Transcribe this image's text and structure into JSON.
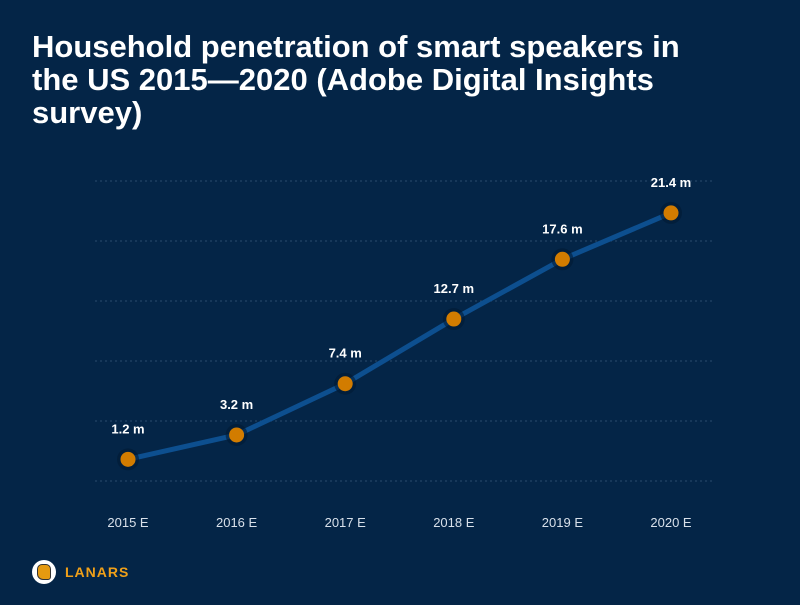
{
  "chart_data": {
    "type": "line",
    "title": "Household penetration of smart speakers in the US 2015—2020 (Adobe Digital Insights survey)",
    "categories": [
      "2015 E",
      "2016 E",
      "2017 E",
      "2018 E",
      "2019 E",
      "2020 E"
    ],
    "values": [
      1.2,
      3.2,
      7.4,
      12.7,
      17.6,
      21.4
    ],
    "data_labels": [
      "1.2 m",
      "3.2 m",
      "7.4 m",
      "12.7 m",
      "17.6 m",
      "21.4 m"
    ],
    "unit": "m",
    "grid": true,
    "colors": {
      "background": "#042547",
      "line": "#0d4f8f",
      "point": "#d27c00",
      "text": "#ffffff"
    }
  },
  "brand": {
    "name": "LANARS"
  }
}
